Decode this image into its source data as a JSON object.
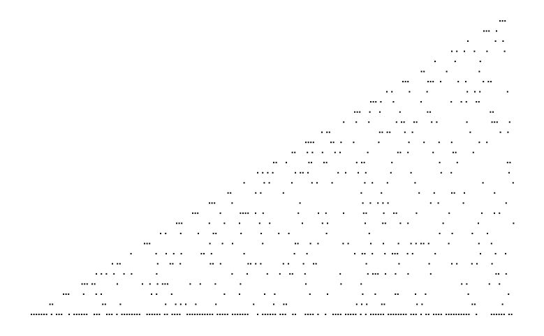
{
  "colors": {
    "background": "#ffffff",
    "dot": "#000000"
  }
}
